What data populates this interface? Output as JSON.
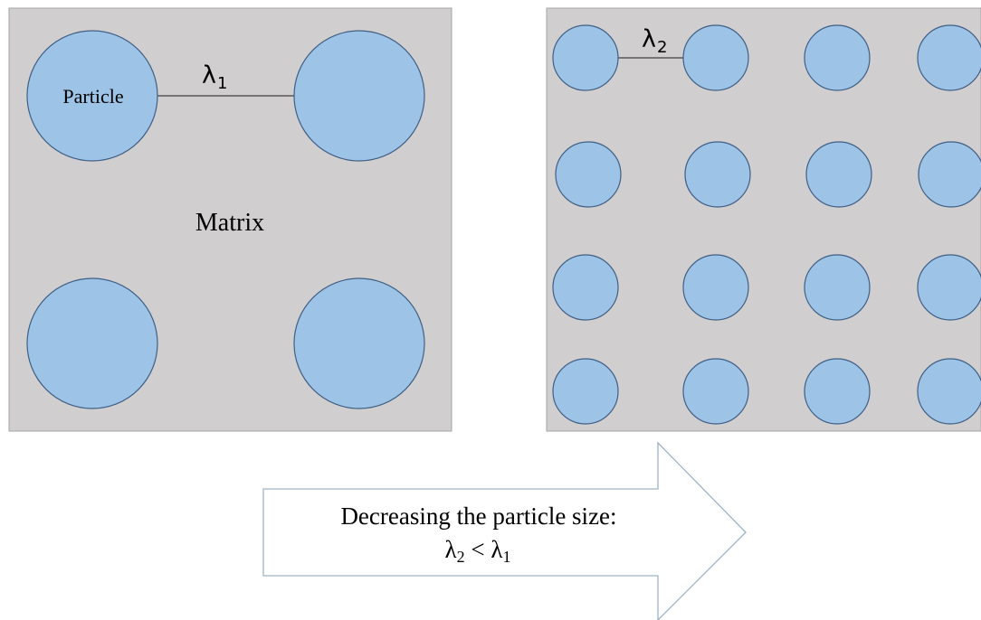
{
  "labels": {
    "particle": "Particle",
    "matrix": "Matrix",
    "lambda1_symbol": "λ",
    "lambda1_sub": "1",
    "lambda2_symbol": "λ",
    "lambda2_sub": "2"
  },
  "arrow": {
    "line1": "Decreasing the particle size:",
    "line2_symbol_a": "λ",
    "line2_sub_a": "2",
    "line2_operator": " < ",
    "line2_symbol_b": "λ",
    "line2_sub_b": "1"
  },
  "colors": {
    "matrix_fill": "#d0cece",
    "particle_fill": "#9dc3e6",
    "particle_stroke": "#3f5f86"
  }
}
